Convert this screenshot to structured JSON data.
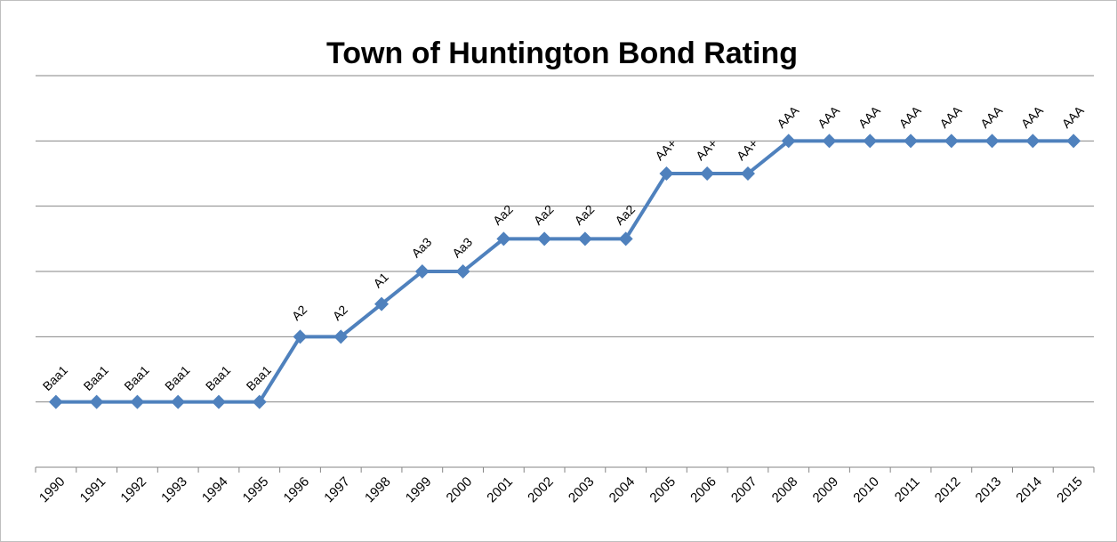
{
  "chart_data": {
    "type": "line",
    "title": "Town of Huntington Bond Rating",
    "categories": [
      "1990",
      "1991",
      "1992",
      "1993",
      "1994",
      "1995",
      "1996",
      "1997",
      "1998",
      "1999",
      "2000",
      "2001",
      "2002",
      "2003",
      "2004",
      "2005",
      "2006",
      "2007",
      "2008",
      "2009",
      "2010",
      "2011",
      "2012",
      "2013",
      "2014",
      "2015"
    ],
    "series": [
      {
        "color": "#4f81bd",
        "values": [
          1,
          1,
          1,
          1,
          1,
          1,
          2,
          2,
          2.5,
          3,
          3,
          3.5,
          3.5,
          3.5,
          3.5,
          4.5,
          4.5,
          4.5,
          5,
          5,
          5,
          5,
          5,
          5,
          5,
          5
        ],
        "value_labels": [
          "Baa1",
          "Baa1",
          "Baa1",
          "Baa1",
          "Baa1",
          "Baa1",
          "A2",
          "A2",
          "A1",
          "Aa3",
          "Aa3",
          "Aa2",
          "Aa2",
          "Aa2",
          "Aa2",
          "AA+",
          "AA+",
          "AA+",
          "AAA",
          "AAA",
          "AAA",
          "AAA",
          "AAA",
          "AAA",
          "AAA",
          "AAA"
        ]
      }
    ],
    "ylim": [
      0,
      6
    ],
    "yticks": [
      0,
      1,
      2,
      3,
      4,
      5,
      6
    ],
    "grid": true
  }
}
